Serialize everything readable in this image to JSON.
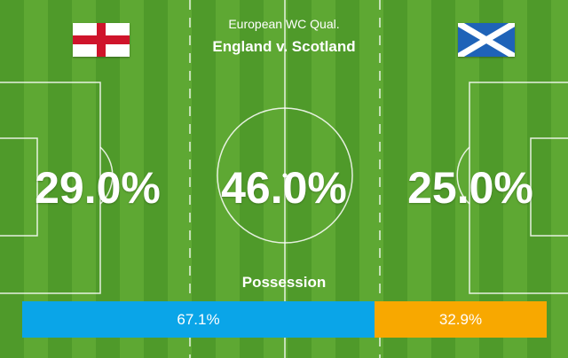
{
  "competition": "European WC Qual.",
  "match_title": "England v. Scotland",
  "home": {
    "flag_icon": "england-flag-icon",
    "win_pct": "29.0%"
  },
  "draw": {
    "pct": "46.0%"
  },
  "away": {
    "flag_icon": "scotland-flag-icon",
    "win_pct": "25.0%"
  },
  "possession": {
    "title": "Possession",
    "home_value": 67.1,
    "away_value": 32.9,
    "home_label": "67.1%",
    "away_label": "32.9%",
    "home_color": "#0aa5e8",
    "away_color": "#f8a800"
  }
}
